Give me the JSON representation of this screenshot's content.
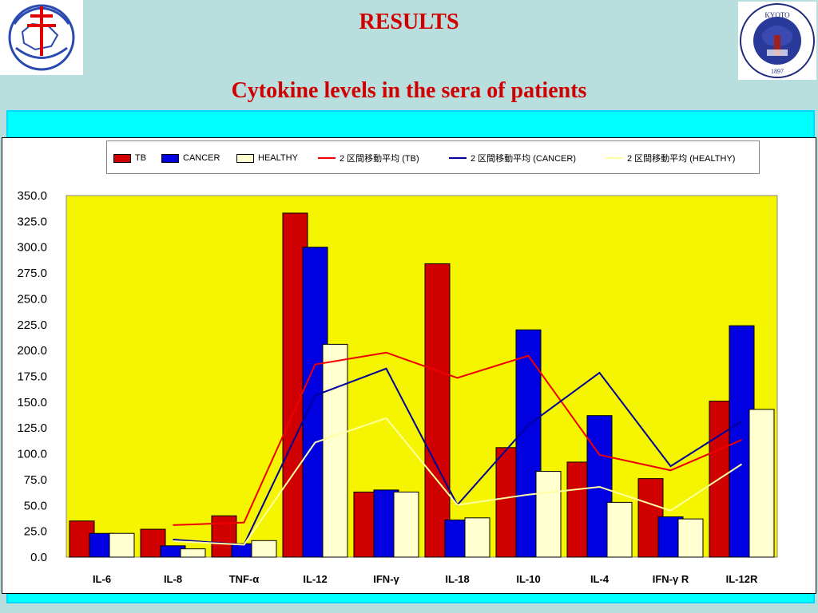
{
  "header": {
    "results": "RESULTS",
    "subtitle": "Cytokine levels in the sera of patients"
  },
  "logos": {
    "right_text": "KYOTO UNIVERSITY FOUNDED 1897"
  },
  "colors": {
    "tb": "#d10000",
    "cancer": "#0000e0",
    "healthy": "#ffffd0",
    "tb_line": "#ee0000",
    "cancer_line": "#000099",
    "healthy_line": "#ffffa0",
    "plot_bg": "#f5f500",
    "title": "#d10000"
  },
  "chart_data": {
    "type": "bar",
    "title": "",
    "xlabel": "",
    "ylabel": "",
    "ylim": [
      0,
      350
    ],
    "yticks": [
      "350.0",
      "325.0",
      "300.0",
      "275.0",
      "250.0",
      "225.0",
      "200.0",
      "175.0",
      "150.0",
      "125.0",
      "100.0",
      "75.0",
      "50.0",
      "25.0",
      "0.0"
    ],
    "categories": [
      "IL-6",
      "IL-8",
      "TNF-α",
      "IL-12",
      "IFN-γ",
      "IL-18",
      "IL-10",
      "IL-4",
      "IFN-γ  R",
      "IL-12R"
    ],
    "series": [
      {
        "name": "TB",
        "values": [
          35,
          27,
          40,
          333,
          63,
          284,
          106,
          92,
          76,
          151
        ]
      },
      {
        "name": "CANCER",
        "values": [
          23,
          11,
          13,
          300,
          65,
          36,
          220,
          137,
          39,
          224
        ]
      },
      {
        "name": "HEALTHY",
        "values": [
          23,
          8,
          16,
          206,
          63,
          38,
          83,
          53,
          37,
          143
        ]
      }
    ],
    "moving_averages": [
      {
        "name": "2 区間移動平均 (TB)",
        "period": 2
      },
      {
        "name": "2 区間移動平均 (CANCER)",
        "period": 2
      },
      {
        "name": "2 区間移動平均 (HEALTHY)",
        "period": 2
      }
    ],
    "legend_position": "top",
    "grid": false
  },
  "legend": {
    "tb": "TB",
    "cancer": "CANCER",
    "healthy": "HEALTHY",
    "ma_tb": "2 区間移動平均 (TB)",
    "ma_cancer": "2 区間移動平均 (CANCER)",
    "ma_healthy": "2 区間移動平均 (HEALTHY)"
  }
}
